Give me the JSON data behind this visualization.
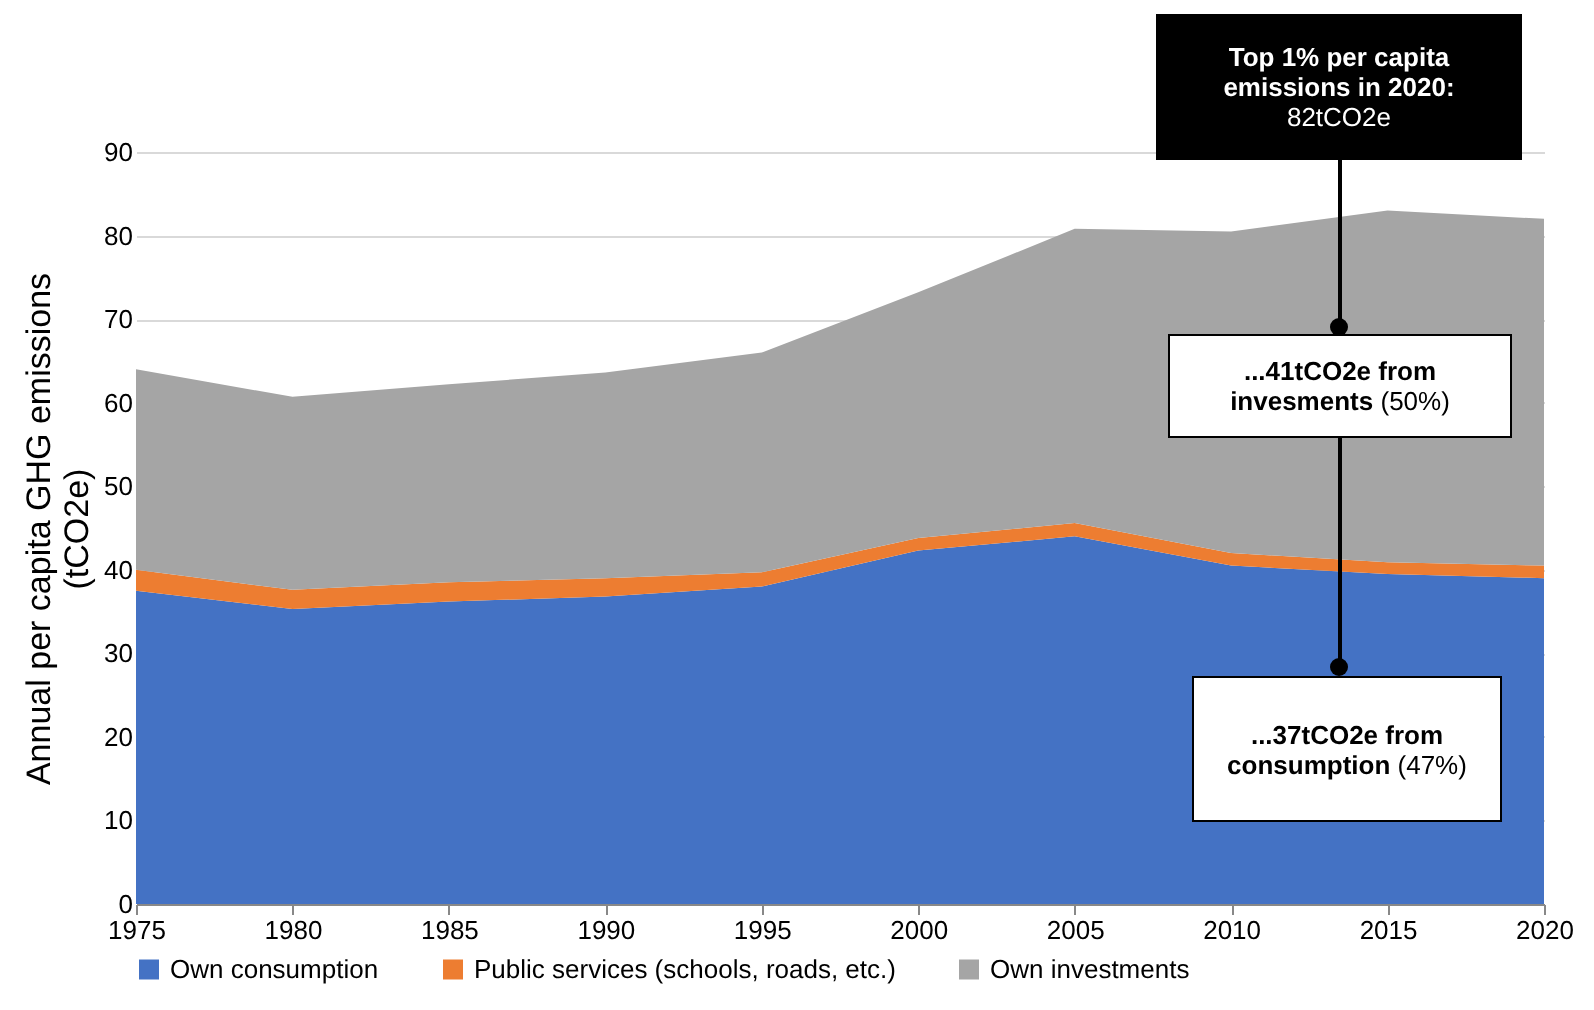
{
  "chart_data": {
    "type": "area",
    "stacked": true,
    "ylabel": "Annual per capita GHG emissions (tCO2e)",
    "x": [
      1975,
      1980,
      1985,
      1990,
      1995,
      2000,
      2005,
      2010,
      2015,
      2020
    ],
    "series": [
      {
        "name": "Own consumption",
        "color": "#4472c4",
        "values": [
          37.5,
          35.3,
          36.2,
          36.8,
          38.0,
          42.3,
          44.0,
          40.5,
          39.5,
          39.0
        ]
      },
      {
        "name": "Public services (schools, roads, etc.)",
        "color": "#ed7d31",
        "values": [
          2.5,
          2.3,
          2.3,
          2.2,
          1.7,
          1.5,
          1.6,
          1.5,
          1.4,
          1.5
        ]
      },
      {
        "name": "Own investments",
        "color": "#a5a5a5",
        "values": [
          24.0,
          23.1,
          23.7,
          24.6,
          26.3,
          29.4,
          35.2,
          38.5,
          42.1,
          41.5
        ]
      }
    ],
    "xlim": [
      1975,
      2020
    ],
    "xticks": [
      1975,
      1980,
      1985,
      1990,
      1995,
      2000,
      2005,
      2010,
      2015,
      2020
    ],
    "ylim": [
      0,
      90
    ],
    "yticks": [
      0,
      10,
      20,
      30,
      40,
      50,
      60,
      70,
      80,
      90
    ],
    "grid": "y",
    "legend": "bottom",
    "annotations": [
      "Top 1% per capita emissions in 2020:",
      "82tCO2e",
      "...41tCO2e from invesments",
      "(50%)",
      "...37tCO2e from consumption",
      "(47%)"
    ]
  }
}
